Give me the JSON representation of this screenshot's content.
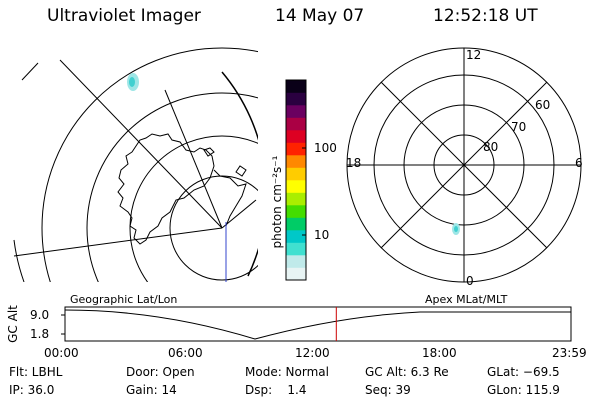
{
  "header": {
    "instrument": "Ultraviolet Imager",
    "date": "14 May 07",
    "time": "12:52:18 UT"
  },
  "colorbar": {
    "unit_label": "photon cm⁻²s⁻¹",
    "tick_labels": [
      "100",
      "10"
    ],
    "colors": [
      "#e8f4f4",
      "#c0eaea",
      "#40e0d0",
      "#00c8c8",
      "#00cc66",
      "#44dd00",
      "#aaee00",
      "#ffff00",
      "#ffcc00",
      "#ff8800",
      "#ff2200",
      "#dd0022",
      "#aa0044",
      "#6a0060",
      "#2a0040",
      "#0a0018"
    ]
  },
  "polar_plot": {
    "mlt_labels": {
      "top": "12",
      "left": "18",
      "right": "6",
      "bottom": "0"
    },
    "mlat_labels": [
      "60",
      "70",
      "80"
    ]
  },
  "map_labels": {
    "left": "Geographic Lat/Lon",
    "right": "Apex MLat/MLT"
  },
  "altitude_plot": {
    "y_label": "GC Alt",
    "y_ticks": [
      "9.0",
      "1.8"
    ],
    "x_ticks": [
      "00:00",
      "06:00",
      "12:00",
      "18:00",
      "23:59"
    ],
    "current_time_hours": 12.87,
    "current_time_color": "#cc0000"
  },
  "footer": {
    "row1": {
      "filter": "Flt: LBHL",
      "door": "Door: Open",
      "mode": "Mode: Normal",
      "gc_alt": "GC Alt: 6.3 Re",
      "glat": "GLat: −69.5"
    },
    "row2": {
      "ip": "IP: 36.0",
      "gain": "Gain: 14",
      "dsp": "Dsp:    1.4",
      "seq": "Seq: 39",
      "glon": "GLon: 115.9"
    }
  }
}
